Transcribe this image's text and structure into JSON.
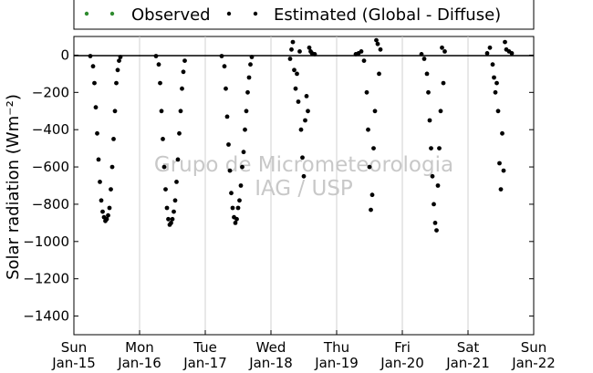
{
  "chart_data": {
    "type": "scatter",
    "title": "",
    "ylabel": "Solar radiation (Wm⁻²)",
    "xlabel": "",
    "ylim": [
      -1500,
      100
    ],
    "yticks": [
      0,
      -200,
      -400,
      -600,
      -800,
      -1000,
      -1200,
      -1400
    ],
    "xlim": [
      "2012-01-15",
      "2012-01-22"
    ],
    "xticks": [
      {
        "day": "Sun",
        "date": "Jan-15"
      },
      {
        "day": "Mon",
        "date": "Jan-16"
      },
      {
        "day": "Tue",
        "date": "Jan-17"
      },
      {
        "day": "Wed",
        "date": "Jan-18"
      },
      {
        "day": "Thu",
        "date": "Jan-19"
      },
      {
        "day": "Fri",
        "date": "Jan-20"
      },
      {
        "day": "Sat",
        "date": "Jan-21"
      },
      {
        "day": "Sun",
        "date": "Jan-22"
      }
    ],
    "grid": "vertical",
    "legend_position": "top-center",
    "watermark": [
      "Grupo de Micrometeorologia",
      "IAG / USP"
    ],
    "series": [
      {
        "name": "Observed",
        "color": "#2e8b2e",
        "points": []
      },
      {
        "name": "Estimated (Global - Diffuse)",
        "color": "#000000",
        "points": [
          [
            "2012-01-15T06:00",
            -5
          ],
          [
            "2012-01-15T07:00",
            -60
          ],
          [
            "2012-01-15T07:30",
            -150
          ],
          [
            "2012-01-15T08:00",
            -280
          ],
          [
            "2012-01-15T08:30",
            -420
          ],
          [
            "2012-01-15T09:00",
            -560
          ],
          [
            "2012-01-15T09:30",
            -680
          ],
          [
            "2012-01-15T10:00",
            -780
          ],
          [
            "2012-01-15T10:30",
            -840
          ],
          [
            "2012-01-15T11:00",
            -870
          ],
          [
            "2012-01-15T11:30",
            -890
          ],
          [
            "2012-01-15T12:00",
            -880
          ],
          [
            "2012-01-15T12:30",
            -860
          ],
          [
            "2012-01-15T13:00",
            -820
          ],
          [
            "2012-01-15T13:30",
            -720
          ],
          [
            "2012-01-15T14:00",
            -600
          ],
          [
            "2012-01-15T14:30",
            -450
          ],
          [
            "2012-01-15T15:00",
            -300
          ],
          [
            "2012-01-15T15:30",
            -150
          ],
          [
            "2012-01-15T16:00",
            -80
          ],
          [
            "2012-01-15T16:30",
            -30
          ],
          [
            "2012-01-15T17:00",
            -10
          ],
          [
            "2012-01-16T06:00",
            -5
          ],
          [
            "2012-01-16T07:00",
            -50
          ],
          [
            "2012-01-16T07:30",
            -150
          ],
          [
            "2012-01-16T08:00",
            -300
          ],
          [
            "2012-01-16T08:30",
            -450
          ],
          [
            "2012-01-16T09:00",
            -600
          ],
          [
            "2012-01-16T09:30",
            -720
          ],
          [
            "2012-01-16T10:00",
            -820
          ],
          [
            "2012-01-16T10:30",
            -880
          ],
          [
            "2012-01-16T11:00",
            -910
          ],
          [
            "2012-01-16T11:30",
            -900
          ],
          [
            "2012-01-16T12:00",
            -880
          ],
          [
            "2012-01-16T12:30",
            -840
          ],
          [
            "2012-01-16T13:00",
            -780
          ],
          [
            "2012-01-16T13:30",
            -680
          ],
          [
            "2012-01-16T14:00",
            -560
          ],
          [
            "2012-01-16T14:30",
            -420
          ],
          [
            "2012-01-16T15:00",
            -300
          ],
          [
            "2012-01-16T15:30",
            -180
          ],
          [
            "2012-01-16T16:00",
            -90
          ],
          [
            "2012-01-16T16:30",
            -30
          ],
          [
            "2012-01-17T06:00",
            -5
          ],
          [
            "2012-01-17T07:00",
            -60
          ],
          [
            "2012-01-17T07:30",
            -180
          ],
          [
            "2012-01-17T08:00",
            -330
          ],
          [
            "2012-01-17T08:30",
            -480
          ],
          [
            "2012-01-17T09:00",
            -620
          ],
          [
            "2012-01-17T09:30",
            -740
          ],
          [
            "2012-01-17T10:00",
            -820
          ],
          [
            "2012-01-17T10:30",
            -870
          ],
          [
            "2012-01-17T11:00",
            -900
          ],
          [
            "2012-01-17T11:30",
            -880
          ],
          [
            "2012-01-17T12:00",
            -820
          ],
          [
            "2012-01-17T12:30",
            -780
          ],
          [
            "2012-01-17T13:00",
            -700
          ],
          [
            "2012-01-17T13:30",
            -600
          ],
          [
            "2012-01-17T14:00",
            -520
          ],
          [
            "2012-01-17T14:30",
            -400
          ],
          [
            "2012-01-17T15:00",
            -300
          ],
          [
            "2012-01-17T15:30",
            -200
          ],
          [
            "2012-01-17T16:00",
            -120
          ],
          [
            "2012-01-17T16:30",
            -50
          ],
          [
            "2012-01-17T17:00",
            -10
          ],
          [
            "2012-01-18T07:00",
            -20
          ],
          [
            "2012-01-18T07:30",
            30
          ],
          [
            "2012-01-18T08:00",
            70
          ],
          [
            "2012-01-18T08:30",
            -80
          ],
          [
            "2012-01-18T09:00",
            -180
          ],
          [
            "2012-01-18T09:30",
            -100
          ],
          [
            "2012-01-18T10:00",
            -250
          ],
          [
            "2012-01-18T10:30",
            20
          ],
          [
            "2012-01-18T11:00",
            -400
          ],
          [
            "2012-01-18T11:30",
            -550
          ],
          [
            "2012-01-18T12:00",
            -650
          ],
          [
            "2012-01-18T12:30",
            -350
          ],
          [
            "2012-01-18T13:00",
            -220
          ],
          [
            "2012-01-18T13:30",
            -300
          ],
          [
            "2012-01-18T14:00",
            40
          ],
          [
            "2012-01-18T14:30",
            20
          ],
          [
            "2012-01-18T15:00",
            10
          ],
          [
            "2012-01-18T16:00",
            5
          ],
          [
            "2012-01-19T07:00",
            5
          ],
          [
            "2012-01-19T08:00",
            10
          ],
          [
            "2012-01-19T09:00",
            20
          ],
          [
            "2012-01-19T10:00",
            -30
          ],
          [
            "2012-01-19T11:00",
            -200
          ],
          [
            "2012-01-19T11:30",
            -400
          ],
          [
            "2012-01-19T12:00",
            -600
          ],
          [
            "2012-01-19T12:30",
            -830
          ],
          [
            "2012-01-19T13:00",
            -750
          ],
          [
            "2012-01-19T13:30",
            -500
          ],
          [
            "2012-01-19T14:00",
            -300
          ],
          [
            "2012-01-19T14:30",
            80
          ],
          [
            "2012-01-19T15:00",
            60
          ],
          [
            "2012-01-19T15:30",
            -100
          ],
          [
            "2012-01-19T16:00",
            30
          ],
          [
            "2012-01-20T07:00",
            5
          ],
          [
            "2012-01-20T08:00",
            -20
          ],
          [
            "2012-01-20T09:00",
            -100
          ],
          [
            "2012-01-20T09:30",
            -200
          ],
          [
            "2012-01-20T10:00",
            -350
          ],
          [
            "2012-01-20T10:30",
            -500
          ],
          [
            "2012-01-20T11:00",
            -650
          ],
          [
            "2012-01-20T11:30",
            -800
          ],
          [
            "2012-01-20T12:00",
            -900
          ],
          [
            "2012-01-20T12:30",
            -940
          ],
          [
            "2012-01-20T13:00",
            -700
          ],
          [
            "2012-01-20T13:30",
            -500
          ],
          [
            "2012-01-20T14:00",
            -300
          ],
          [
            "2012-01-20T14:30",
            40
          ],
          [
            "2012-01-20T15:00",
            -150
          ],
          [
            "2012-01-20T15:30",
            20
          ],
          [
            "2012-01-21T07:00",
            10
          ],
          [
            "2012-01-21T08:00",
            40
          ],
          [
            "2012-01-21T09:00",
            -50
          ],
          [
            "2012-01-21T09:30",
            -120
          ],
          [
            "2012-01-21T10:00",
            -200
          ],
          [
            "2012-01-21T10:30",
            -150
          ],
          [
            "2012-01-21T11:00",
            -300
          ],
          [
            "2012-01-21T11:30",
            -580
          ],
          [
            "2012-01-21T12:00",
            -720
          ],
          [
            "2012-01-21T12:30",
            -420
          ],
          [
            "2012-01-21T13:00",
            -620
          ],
          [
            "2012-01-21T13:30",
            70
          ],
          [
            "2012-01-21T14:00",
            30
          ],
          [
            "2012-01-21T15:00",
            20
          ],
          [
            "2012-01-21T16:00",
            10
          ]
        ]
      }
    ]
  }
}
